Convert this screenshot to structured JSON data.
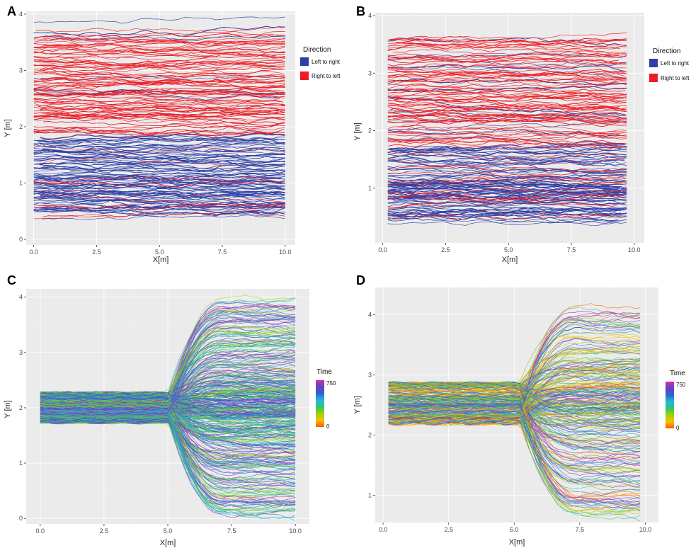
{
  "chart_data": [
    {
      "panel": "A",
      "type": "line",
      "xlabel": "X[m]",
      "ylabel": "Y [m]",
      "xlim": [
        -0.3,
        10.4
      ],
      "ylim": [
        -0.1,
        4.05
      ],
      "xticks": [
        0.0,
        2.5,
        5.0,
        7.5,
        10.0
      ],
      "xtick_labels": [
        "0.0",
        "2.5",
        "5.0",
        "7.5",
        "10.0"
      ],
      "yticks": [
        0,
        1,
        2,
        3,
        4
      ],
      "ytick_labels": [
        "0",
        "1",
        "2",
        "3",
        "4"
      ],
      "grid": true,
      "background": "#ebebeb",
      "legend": {
        "title": "Direction",
        "position": "right",
        "entries": [
          {
            "label": "Left to right",
            "color": "#2e3fa6"
          },
          {
            "label": "Right to left",
            "color": "#ee1c25"
          }
        ]
      },
      "series": [
        {
          "name": "Left to right",
          "color": "#2e3fa6",
          "x_range": [
            0.0,
            10.0
          ],
          "y_band": [
            0.25,
            3.9
          ],
          "dense_band": [
            0.5,
            1.8
          ]
        },
        {
          "name": "Right to left",
          "color": "#ee1c25",
          "x_range": [
            0.0,
            10.0
          ],
          "y_band": [
            0.3,
            3.85
          ],
          "dense_band": [
            1.9,
            3.75
          ]
        }
      ]
    },
    {
      "panel": "B",
      "type": "line",
      "xlabel": "X[m]",
      "ylabel": "Y [m]",
      "xlim": [
        -0.3,
        10.4
      ],
      "ylim": [
        0.05,
        4.05
      ],
      "xticks": [
        0.0,
        2.5,
        5.0,
        7.5,
        10.0
      ],
      "xtick_labels": [
        "0.0",
        "2.5",
        "5.0",
        "7.5",
        "10.0"
      ],
      "yticks": [
        1,
        2,
        3,
        4
      ],
      "ytick_labels": [
        "1",
        "2",
        "3",
        "4"
      ],
      "grid": true,
      "background": "#ebebeb",
      "legend": {
        "title": "Direction",
        "position": "right",
        "entries": [
          {
            "label": "Left to right",
            "color": "#2e3fa6"
          },
          {
            "label": "Right to left",
            "color": "#ee1c25"
          }
        ]
      },
      "series": [
        {
          "name": "Left to right",
          "color": "#2e3fa6",
          "x_range": [
            0.2,
            9.7
          ],
          "y_band": [
            0.3,
            3.8
          ],
          "dense_band": [
            0.45,
            1.7
          ]
        },
        {
          "name": "Right to left",
          "color": "#ee1c25",
          "x_range": [
            0.2,
            9.7
          ],
          "y_band": [
            0.4,
            3.65
          ],
          "dense_band": [
            1.7,
            3.6
          ]
        }
      ]
    },
    {
      "panel": "C",
      "type": "line",
      "xlabel": "X[m]",
      "ylabel": "Y [m]",
      "xlim": [
        -0.55,
        10.55
      ],
      "ylim": [
        -0.1,
        4.15
      ],
      "xticks": [
        0.0,
        2.5,
        5.0,
        7.5,
        10.0
      ],
      "xtick_labels": [
        "0.0",
        "2.5",
        "5.0",
        "7.5",
        "10.0"
      ],
      "yticks": [
        0,
        1,
        2,
        3,
        4
      ],
      "ytick_labels": [
        "0",
        "1",
        "2",
        "3",
        "4"
      ],
      "grid": true,
      "background": "#ebebeb",
      "legend": {
        "title": "Time",
        "position": "right",
        "type": "colorbar",
        "min": 0,
        "max": 750,
        "min_label": "0",
        "max_label": "750",
        "colors": [
          "#ff5a00",
          "#f2c100",
          "#9ed400",
          "#2fc27a",
          "#28b8d8",
          "#2c64cf",
          "#6a3fc0",
          "#d42ab8"
        ]
      },
      "flow": {
        "x_start": 0.0,
        "x_end": 10.0,
        "corridor_y": [
          1.7,
          2.3
        ],
        "expansion_x": 5.0,
        "spread_y": [
          0.1,
          3.95
        ]
      }
    },
    {
      "panel": "D",
      "type": "line",
      "xlabel": "X[m]",
      "ylabel": "Y [m]",
      "xlim": [
        -0.3,
        10.5
      ],
      "ylim": [
        0.55,
        4.45
      ],
      "xticks": [
        0.0,
        2.5,
        5.0,
        7.5,
        10.0
      ],
      "xtick_labels": [
        "0.0",
        "2.5",
        "5.0",
        "7.5",
        "10.0"
      ],
      "yticks": [
        1,
        2,
        3,
        4
      ],
      "ytick_labels": [
        "1",
        "2",
        "3",
        "4"
      ],
      "grid": true,
      "background": "#ebebeb",
      "legend": {
        "title": "Time",
        "position": "right",
        "type": "colorbar",
        "min": 0,
        "max": 750,
        "min_label": "0",
        "max_label": "750",
        "colors": [
          "#ff5a00",
          "#f2c100",
          "#9ed400",
          "#2fc27a",
          "#28b8d8",
          "#2c64cf",
          "#6a3fc0",
          "#d42ab8"
        ]
      },
      "flow": {
        "x_start": 0.2,
        "x_end": 9.8,
        "corridor_y": [
          2.15,
          2.9
        ],
        "expansion_x": 5.2,
        "spread_y": [
          0.7,
          4.1
        ]
      }
    }
  ]
}
